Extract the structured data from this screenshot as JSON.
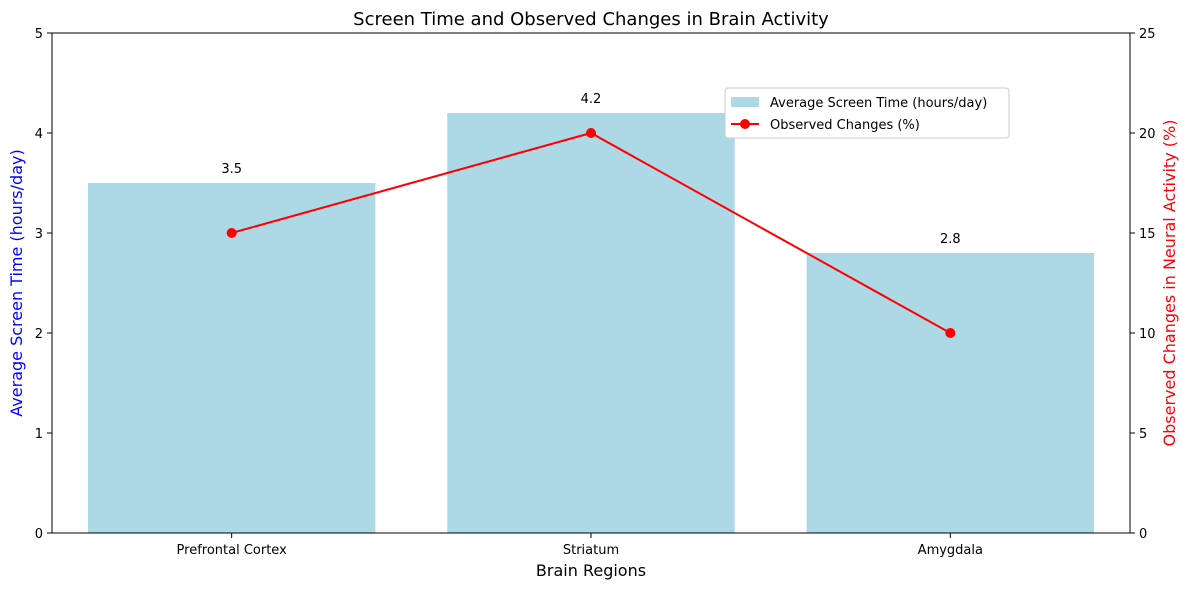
{
  "chart_data": {
    "type": "bar",
    "title": "Screen Time and Observed Changes in Brain Activity",
    "xlabel": "Brain Regions",
    "ylabel": "Average Screen Time (hours/day)",
    "y2label": "Observed Changes in Neural Activity (%)",
    "categories": [
      "Prefrontal Cortex",
      "Striatum",
      "Amygdala"
    ],
    "ylim": [
      0,
      5
    ],
    "y2lim": [
      0,
      25
    ],
    "yticks": [
      0,
      1,
      2,
      3,
      4,
      5
    ],
    "y2ticks": [
      0,
      5,
      10,
      15,
      20,
      25
    ],
    "grid": false,
    "legend_position": "upper-right",
    "series": [
      {
        "name": "Average Screen Time (hours/day)",
        "type": "bar",
        "axis": "left",
        "color": "#add8e6",
        "values": [
          3.5,
          4.2,
          2.8
        ],
        "data_labels": [
          "3.5",
          "4.2",
          "2.8"
        ]
      },
      {
        "name": "Observed Changes (%)",
        "type": "line",
        "axis": "right",
        "color": "#ff0000",
        "marker": "circle",
        "values": [
          15,
          20,
          10
        ]
      }
    ],
    "colors": {
      "ylabel": "#0000ff",
      "y2label": "#ff0000",
      "axis": "#000000"
    }
  }
}
